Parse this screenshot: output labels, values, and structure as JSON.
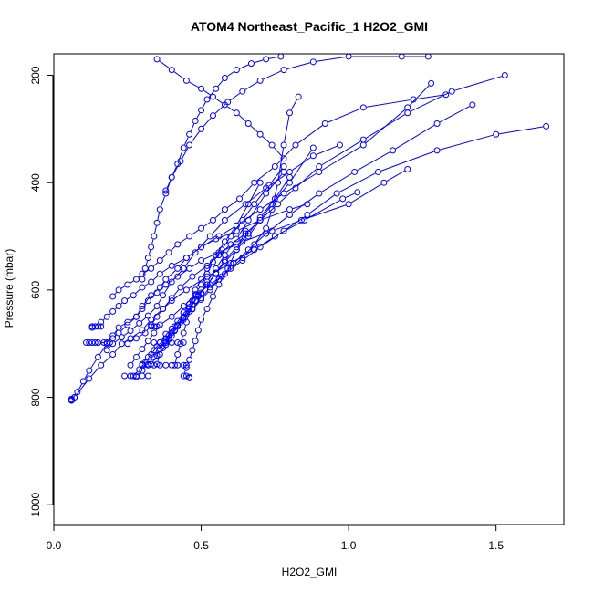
{
  "chart_data": {
    "type": "line",
    "title": "ATOM4 Northeast_Pacific_1 H2O2_GMI",
    "xlabel": "H2O2_GMI",
    "ylabel": "Pressure (mbar)",
    "xlim": [
      0,
      1.73
    ],
    "ylim": [
      1037,
      160
    ],
    "y_reversed": true,
    "x_ticks": [
      0,
      0.5,
      1,
      1.5
    ],
    "x_tick_labels": [
      "0.0",
      "0.5",
      "1.0",
      "1.5"
    ],
    "y_ticks": [
      200,
      400,
      600,
      800,
      1000
    ],
    "y_tick_labels": [
      "200",
      "400",
      "600",
      "800",
      "1000"
    ],
    "grid": false,
    "legend": "none",
    "series_color": "#0000FF",
    "marker": "open-circle",
    "series": [
      {
        "x": [
          0.06,
          0.08,
          0.1,
          0.12,
          0.15,
          0.18,
          0.2,
          0.22,
          0.25,
          0.28,
          0.3,
          0.33,
          0.36,
          0.38,
          0.42,
          0.45,
          0.5,
          0.55,
          0.62,
          0.7,
          0.8,
          0.86
        ],
        "y": [
          805,
          790,
          770,
          750,
          725,
          700,
          690,
          680,
          665,
          650,
          630,
          610,
          595,
          580,
          560,
          540,
          520,
          505,
          490,
          470,
          450,
          440
        ]
      },
      {
        "x": [
          0.07,
          0.12,
          0.16,
          0.2,
          0.23,
          0.26,
          0.3,
          0.33,
          0.37,
          0.4,
          0.45,
          0.52,
          0.6,
          0.68,
          0.75,
          0.85,
          0.98,
          1.03
        ],
        "y": [
          800,
          765,
          740,
          720,
          700,
          690,
          675,
          655,
          635,
          620,
          600,
          575,
          550,
          525,
          500,
          470,
          430,
          418
        ]
      },
      {
        "x": [
          0.12,
          0.14,
          0.15,
          0.18,
          0.2,
          0.22,
          0.25,
          0.28,
          0.3,
          0.32,
          0.35,
          0.38,
          0.42,
          0.46,
          0.5,
          0.56,
          0.64,
          0.74,
          0.84,
          1.0,
          1.12,
          1.2
        ],
        "y": [
          698,
          698,
          698,
          698,
          685,
          670,
          660,
          650,
          635,
          620,
          605,
          590,
          575,
          560,
          545,
          530,
          510,
          490,
          470,
          440,
          400,
          375
        ]
      },
      {
        "x": [
          0.13,
          0.16,
          0.18,
          0.2,
          0.22,
          0.24,
          0.27,
          0.3,
          0.33,
          0.36,
          0.4,
          0.45,
          0.5,
          0.56,
          0.62,
          0.7,
          0.78,
          0.9,
          1.05,
          1.2,
          1.28
        ],
        "y": [
          670,
          660,
          650,
          640,
          630,
          620,
          610,
          595,
          585,
          570,
          555,
          540,
          520,
          500,
          480,
          450,
          420,
          380,
          330,
          260,
          215
        ]
      },
      {
        "x": [
          0.2,
          0.22,
          0.25,
          0.28,
          0.3,
          0.33,
          0.36,
          0.39,
          0.42,
          0.46,
          0.5,
          0.54,
          0.58,
          0.63,
          0.68,
          0.75,
          0.82,
          0.92,
          1.05,
          1.22,
          1.33
        ],
        "y": [
          612,
          600,
          590,
          580,
          570,
          560,
          545,
          530,
          515,
          500,
          485,
          470,
          450,
          430,
          400,
          370,
          330,
          290,
          260,
          245,
          236
        ]
      },
      {
        "x": [
          0.25,
          0.28,
          0.31,
          0.33,
          0.35,
          0.37,
          0.4,
          0.43,
          0.47,
          0.52,
          0.56,
          0.6,
          0.65,
          0.7,
          0.76,
          0.82,
          0.9,
          1.05,
          1.2,
          1.35,
          1.53
        ],
        "y": [
          700,
          690,
          680,
          665,
          650,
          635,
          615,
          595,
          575,
          555,
          535,
          515,
          495,
          470,
          440,
          410,
          370,
          320,
          270,
          230,
          200
        ]
      },
      {
        "x": [
          0.26,
          0.28,
          0.3,
          0.32,
          0.34,
          0.36,
          0.4,
          0.44,
          0.48,
          0.53,
          0.58,
          0.64,
          0.7,
          0.78,
          0.86,
          0.96,
          1.1,
          1.3,
          1.5,
          1.67
        ],
        "y": [
          740,
          725,
          710,
          695,
          680,
          665,
          650,
          630,
          610,
          590,
          570,
          545,
          520,
          490,
          460,
          420,
          380,
          340,
          310,
          295
        ]
      },
      {
        "x": [
          0.27,
          0.29,
          0.31,
          0.33,
          0.35,
          0.38,
          0.41,
          0.44,
          0.47,
          0.5,
          0.53,
          0.57,
          0.61,
          0.66,
          0.72,
          0.8,
          0.9,
          1.02,
          1.15,
          1.3,
          1.42
        ],
        "y": [
          760,
          748,
          735,
          720,
          705,
          690,
          675,
          655,
          635,
          615,
          595,
          575,
          550,
          525,
          495,
          460,
          420,
          380,
          340,
          290,
          255
        ]
      },
      {
        "x": [
          0.28,
          0.3,
          0.32,
          0.34,
          0.36,
          0.38,
          0.4,
          0.42,
          0.44,
          0.46,
          0.48,
          0.5,
          0.52,
          0.55,
          0.58,
          0.62,
          0.66,
          0.72,
          0.78
        ],
        "y": [
          762,
          750,
          738,
          725,
          710,
          695,
          680,
          665,
          650,
          635,
          620,
          605,
          585,
          560,
          535,
          505,
          470,
          420,
          380
        ]
      },
      {
        "x": [
          0.3,
          0.32,
          0.34,
          0.36,
          0.38,
          0.41,
          0.44,
          0.47,
          0.5,
          0.53,
          0.56,
          0.6,
          0.64,
          0.68,
          0.72,
          0.74,
          0.76,
          0.78,
          0.8,
          0.83
        ],
        "y": [
          738,
          725,
          712,
          698,
          682,
          668,
          652,
          636,
          618,
          600,
          580,
          560,
          540,
          515,
          485,
          450,
          400,
          330,
          270,
          240
        ]
      },
      {
        "x": [
          0.33,
          0.35,
          0.37,
          0.39,
          0.41,
          0.43,
          0.45,
          0.47,
          0.49,
          0.52,
          0.55,
          0.58,
          0.62,
          0.66,
          0.7,
          0.74,
          0.8,
          0.88
        ],
        "y": [
          738,
          722,
          708,
          692,
          676,
          660,
          645,
          628,
          610,
          590,
          570,
          548,
          525,
          500,
          470,
          440,
          400,
          335
        ]
      },
      {
        "x": [
          0.35,
          0.36,
          0.38,
          0.4,
          0.42,
          0.44,
          0.46,
          0.49,
          0.52,
          0.55,
          0.58,
          0.62,
          0.66,
          0.7,
          0.75,
          0.8
        ],
        "y": [
          738,
          720,
          702,
          685,
          668,
          650,
          632,
          612,
          590,
          568,
          545,
          520,
          495,
          465,
          430,
          390
        ]
      },
      {
        "x": [
          0.38,
          0.39,
          0.4,
          0.42,
          0.44,
          0.46,
          0.48,
          0.5,
          0.52,
          0.54,
          0.57,
          0.6,
          0.64,
          0.68,
          0.73,
          0.78
        ],
        "y": [
          698,
          685,
          672,
          658,
          642,
          626,
          608,
          590,
          570,
          548,
          525,
          500,
          470,
          440,
          405,
          370
        ]
      },
      {
        "x": [
          0.41,
          0.42,
          0.43,
          0.44,
          0.45,
          0.46,
          0.47,
          0.48,
          0.5,
          0.52,
          0.55,
          0.58,
          0.62,
          0.66,
          0.7
        ],
        "y": [
          740,
          720,
          700,
          680,
          660,
          640,
          620,
          600,
          580,
          560,
          535,
          510,
          480,
          440,
          400
        ]
      },
      {
        "x": [
          0.44,
          0.45,
          0.46,
          0.47,
          0.48,
          0.49,
          0.5,
          0.52,
          0.54,
          0.56,
          0.59,
          0.62,
          0.65
        ],
        "y": [
          760,
          745,
          730,
          712,
          695,
          675,
          655,
          635,
          612,
          590,
          560,
          525,
          490
        ]
      },
      {
        "x": [
          0.18,
          0.2,
          0.23,
          0.26,
          0.29,
          0.32,
          0.35,
          0.37,
          0.4,
          0.44,
          0.48,
          0.53,
          0.58,
          0.65,
          0.72,
          0.8,
          0.88,
          0.97
        ],
        "y": [
          712,
          700,
          688,
          676,
          662,
          648,
          630,
          610,
          585,
          560,
          530,
          500,
          470,
          440,
          410,
          380,
          350,
          330
        ]
      },
      {
        "x": [
          0.3,
          0.31,
          0.32,
          0.33,
          0.34,
          0.35,
          0.36,
          0.38,
          0.4,
          0.43,
          0.46,
          0.5,
          0.54,
          0.59,
          0.64,
          0.7,
          0.78,
          0.88,
          1.0,
          1.18,
          1.27
        ],
        "y": [
          580,
          560,
          540,
          520,
          500,
          475,
          450,
          420,
          390,
          360,
          330,
          300,
          275,
          250,
          230,
          210,
          190,
          175,
          165,
          165,
          165
        ]
      },
      {
        "x": [
          0.38,
          0.4,
          0.42,
          0.44,
          0.46,
          0.48,
          0.5,
          0.52,
          0.55,
          0.58,
          0.62,
          0.67,
          0.72,
          0.77
        ],
        "y": [
          415,
          390,
          365,
          335,
          310,
          285,
          265,
          245,
          225,
          205,
          190,
          178,
          170,
          165
        ]
      },
      {
        "x": [
          0.35,
          0.4,
          0.45,
          0.5,
          0.54,
          0.58,
          0.62,
          0.66,
          0.7,
          0.74,
          0.78
        ],
        "y": [
          170,
          190,
          210,
          225,
          240,
          255,
          270,
          290,
          310,
          330,
          355
        ]
      },
      {
        "x": [
          0.07,
          0.06,
          0.06,
          0.06
        ],
        "y": [
          800,
          803,
          805,
          806
        ]
      },
      {
        "x": [
          0.11,
          0.13,
          0.15,
          0.17,
          0.19
        ],
        "y": [
          698,
          698,
          698,
          698,
          698
        ]
      },
      {
        "x": [
          0.13,
          0.14,
          0.15,
          0.16
        ],
        "y": [
          668,
          668,
          668,
          668
        ]
      },
      {
        "x": [
          0.3,
          0.32,
          0.34,
          0.36,
          0.38,
          0.4,
          0.42,
          0.44,
          0.45
        ],
        "y": [
          740,
          740,
          740,
          740,
          740,
          740,
          740,
          740,
          740
        ]
      },
      {
        "x": [
          0.34,
          0.36,
          0.38,
          0.4,
          0.42,
          0.44
        ],
        "y": [
          698,
          698,
          698,
          698,
          698,
          698
        ]
      },
      {
        "x": [
          0.24,
          0.26,
          0.28,
          0.3,
          0.32
        ],
        "y": [
          760,
          760,
          760,
          760,
          760
        ]
      },
      {
        "x": [
          0.33,
          0.34,
          0.35
        ],
        "y": [
          668,
          668,
          668
        ]
      },
      {
        "x": [
          0.45,
          0.46,
          0.46
        ],
        "y": [
          760,
          762,
          764
        ]
      }
    ]
  }
}
